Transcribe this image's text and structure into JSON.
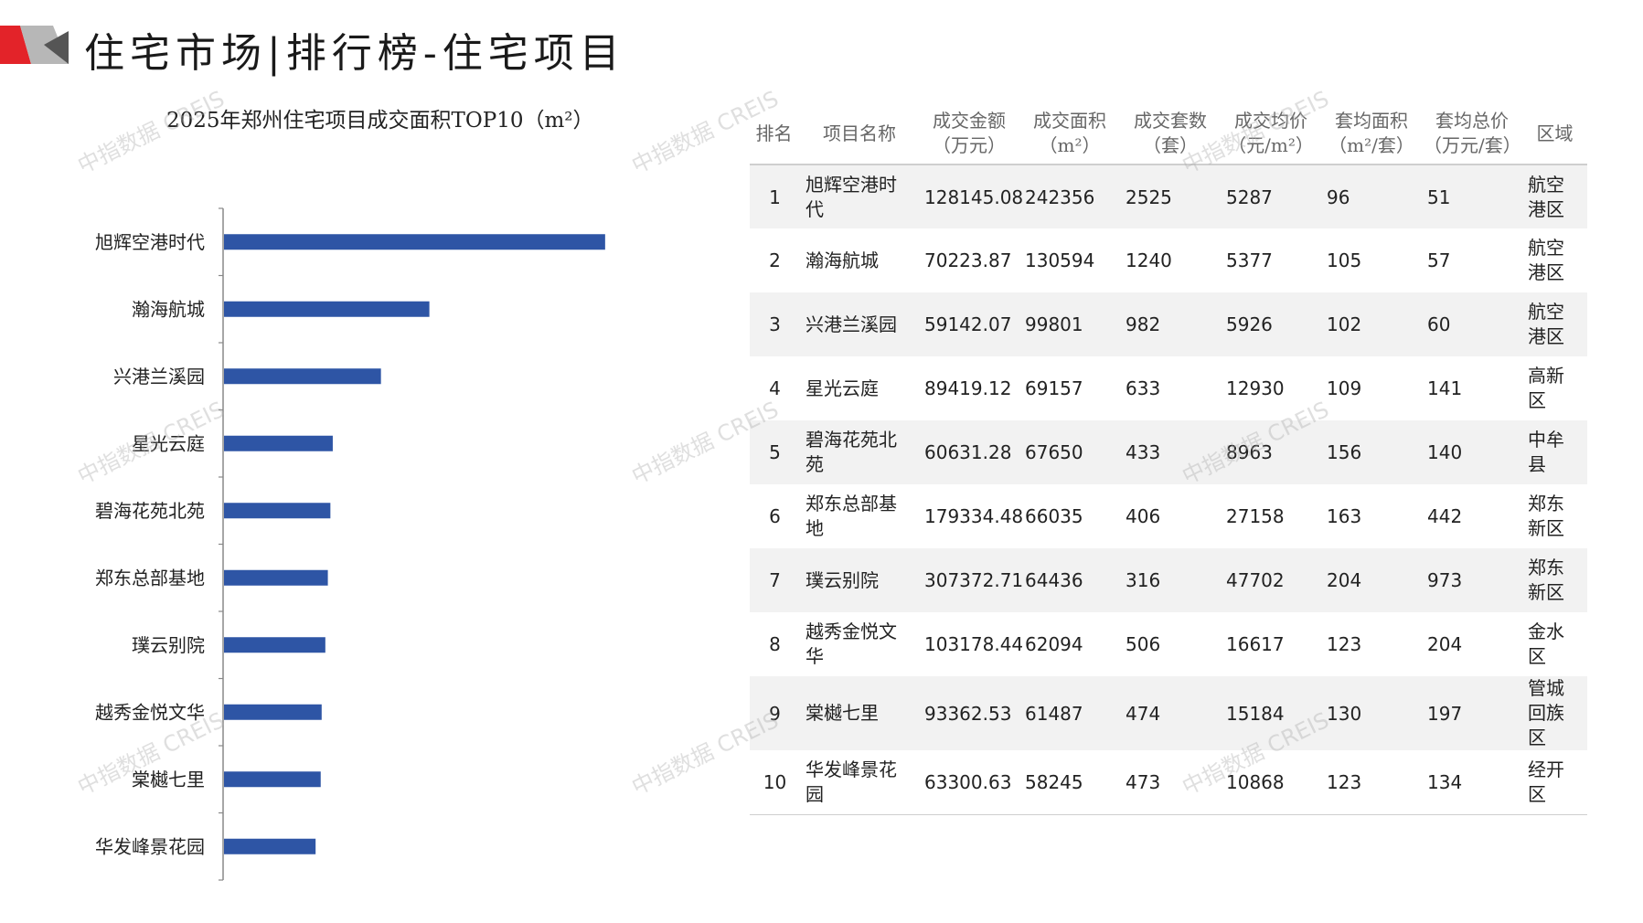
{
  "header": {
    "title": "住宅市场|排行榜-住宅项目",
    "logo_colors": [
      "#e32329",
      "#b7b7b7",
      "#555555"
    ]
  },
  "watermark": "中指数据 CREIS",
  "chart_data": {
    "type": "bar",
    "orientation": "horizontal",
    "title": "2025年郑州住宅项目成交面积TOP10（m²）",
    "categories": [
      "旭辉空港时代",
      "瀚海航城",
      "兴港兰溪园",
      "星光云庭",
      "碧海花苑北苑",
      "郑东总部基地",
      "璞云别院",
      "越秀金悦文华",
      "棠樾七里",
      "华发峰景花园"
    ],
    "values": [
      242356,
      130594,
      99801,
      69157,
      67650,
      66035,
      64436,
      62094,
      61487,
      58245
    ],
    "xlim": [
      0,
      250000
    ],
    "bar_color": "#2e55a5",
    "grid": false,
    "legend": "none"
  },
  "table": {
    "headers": [
      [
        "排名"
      ],
      [
        "项目名称"
      ],
      [
        "成交金额",
        "（万元）"
      ],
      [
        "成交面积",
        "（m²）"
      ],
      [
        "成交套数",
        "（套）"
      ],
      [
        "成交均价",
        "（元/m²）"
      ],
      [
        "套均面积",
        "（m²/套）"
      ],
      [
        "套均总价",
        "（万元/套）"
      ],
      [
        "区域"
      ]
    ],
    "rows": [
      [
        "1",
        "旭辉空港时代",
        "128145.08",
        "242356",
        "2525",
        "5287",
        "96",
        "51",
        "航空港区"
      ],
      [
        "2",
        "瀚海航城",
        "70223.87",
        "130594",
        "1240",
        "5377",
        "105",
        "57",
        "航空港区"
      ],
      [
        "3",
        "兴港兰溪园",
        "59142.07",
        "99801",
        "982",
        "5926",
        "102",
        "60",
        "航空港区"
      ],
      [
        "4",
        "星光云庭",
        "89419.12",
        "69157",
        "633",
        "12930",
        "109",
        "141",
        "高新区"
      ],
      [
        "5",
        "碧海花苑北苑",
        "60631.28",
        "67650",
        "433",
        "8963",
        "156",
        "140",
        "中牟县"
      ],
      [
        "6",
        "郑东总部基地",
        "179334.48",
        "66035",
        "406",
        "27158",
        "163",
        "442",
        "郑东新区"
      ],
      [
        "7",
        "璞云别院",
        "307372.71",
        "64436",
        "316",
        "47702",
        "204",
        "973",
        "郑东新区"
      ],
      [
        "8",
        "越秀金悦文华",
        "103178.44",
        "62094",
        "506",
        "16617",
        "123",
        "204",
        "金水区"
      ],
      [
        "9",
        "棠樾七里",
        "93362.53",
        "61487",
        "474",
        "15184",
        "130",
        "197",
        "管城回族区"
      ],
      [
        "10",
        "华发峰景花园",
        "63300.63",
        "58245",
        "473",
        "10868",
        "123",
        "134",
        "经开区"
      ]
    ]
  }
}
